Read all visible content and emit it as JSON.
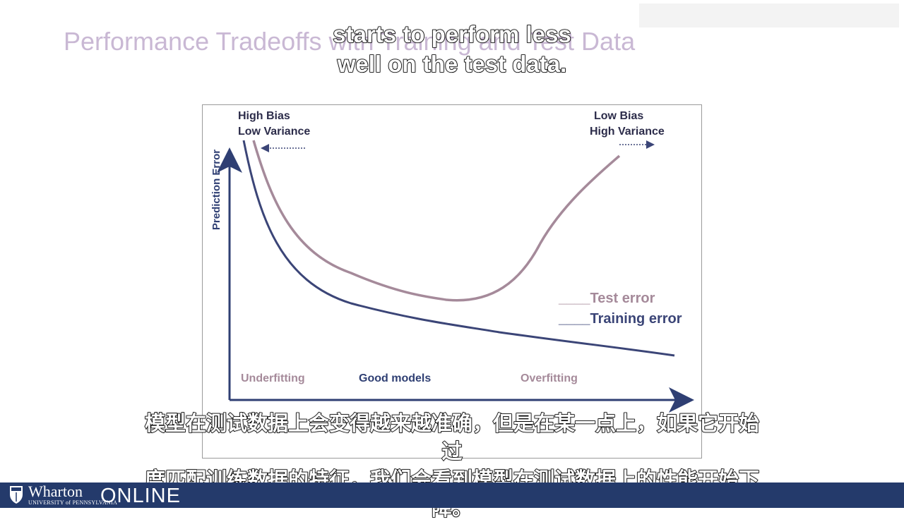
{
  "slide": {
    "title": "Performance Tradeoffs with Training and Test Data"
  },
  "captions": {
    "english_lines": [
      "starts to perform less",
      "well on the test data."
    ],
    "chinese_lines": [
      "模型在测试数据上会变得越来越准确，但是在某一点上，如果它开始过",
      "度匹配训练数据的特征，我们会看到模型在测试数据上的性能开始下",
      "降。"
    ]
  },
  "diagram": {
    "y_axis_label": "Prediction Error",
    "corner_left": [
      "High Bias",
      "Low Variance"
    ],
    "corner_right": [
      "Low Bias",
      "High Variance"
    ],
    "legend": {
      "test_label": "____Test error",
      "training_label": "____Training error"
    },
    "regions": {
      "underfitting": "Underfitting",
      "good": "Good models",
      "overfitting": "Overfitting"
    },
    "colors": {
      "test_curve": "#a58a9a",
      "training_curve": "#3b4577",
      "axis": "#2f3f73",
      "good_models": "#2f3f73",
      "fitting_labels": "#a58a9a",
      "corner_text": "#2c2c4a"
    }
  },
  "footer": {
    "logo_name": "Wharton",
    "logo_subtitle": "UNIVERSITY of PENNSYLVANIA",
    "logo_online": "ONLINE",
    "bar_color": "#243a6b"
  }
}
